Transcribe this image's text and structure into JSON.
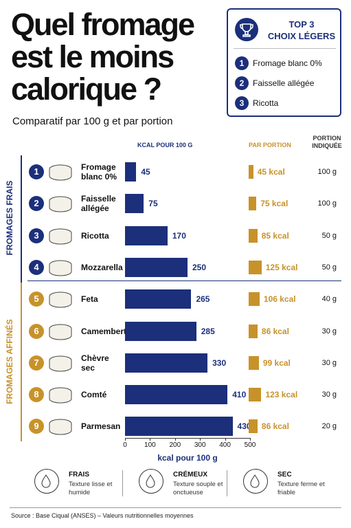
{
  "header": {
    "title": "Quel fromage est le moins calorique ?",
    "subtitle": "Comparatif par 100 g et par portion"
  },
  "top3": {
    "title": "TOP 3",
    "subtitle": "CHOIX LÉGERS",
    "items": [
      {
        "rank": 1,
        "label": "Fromage blanc 0%"
      },
      {
        "rank": 2,
        "label": "Faisselle allégée"
      },
      {
        "rank": 3,
        "label": "Ricotta"
      }
    ]
  },
  "chart_data": {
    "type": "bar",
    "orientation": "horizontal",
    "categories": [
      "Fromage blanc 0%",
      "Faisselle allégée",
      "Ricotta",
      "Mozzarella",
      "Feta",
      "Camembert",
      "Chèvre sec",
      "Comté",
      "Parmesan"
    ],
    "ranks": [
      1,
      2,
      3,
      4,
      5,
      6,
      7,
      8,
      9
    ],
    "groups": [
      {
        "name": "FROMAGES FRAIS",
        "color": "#1b2f7b"
      },
      {
        "name": "FROMAGES AFFINÉS",
        "color": "#c8922a"
      }
    ],
    "category_group": [
      "FROMAGES FRAIS",
      "FROMAGES FRAIS",
      "FROMAGES FRAIS",
      "FROMAGES FRAIS",
      "FROMAGES AFFINÉS",
      "FROMAGES AFFINÉS",
      "FROMAGES AFFINÉS",
      "FROMAGES AFFINÉS",
      "FROMAGES AFFINÉS"
    ],
    "series": [
      {
        "name": "KCAL POUR 100 G",
        "color": "#1b2f7b",
        "values": [
          45,
          75,
          170,
          250,
          265,
          285,
          330,
          410,
          430
        ]
      },
      {
        "name": "PAR PORTION",
        "color": "#c8922a",
        "values": [
          45,
          75,
          85,
          125,
          106,
          86,
          99,
          123,
          86
        ],
        "value_labels": [
          "45 kcal",
          "75 kcal",
          "85 kcal",
          "125 kcal",
          "106 kcal",
          "86 kcal",
          "99 kcal",
          "123 kcal",
          "86 kcal"
        ]
      }
    ],
    "portion_header": "PORTION INDIQUÉE",
    "portions": [
      "100 g",
      "100 g",
      "50 g",
      "50 g",
      "40 g",
      "30 g",
      "30 g",
      "30 g",
      "20 g"
    ],
    "xlim": [
      0,
      500
    ],
    "xticks": [
      0,
      100,
      200,
      300,
      400,
      500
    ],
    "x_label": "kcal pour 100 g"
  },
  "legend": [
    {
      "title": "FRAIS",
      "text": "Texture lisse et humide"
    },
    {
      "title": "CRÉMEUX",
      "text": "Texture souple et onctueuse"
    },
    {
      "title": "SEC",
      "text": "Texture ferme et friable"
    }
  ],
  "source": "Source : Base Ciqual (ANSES) – Valeurs nutritionnelles moyennes"
}
